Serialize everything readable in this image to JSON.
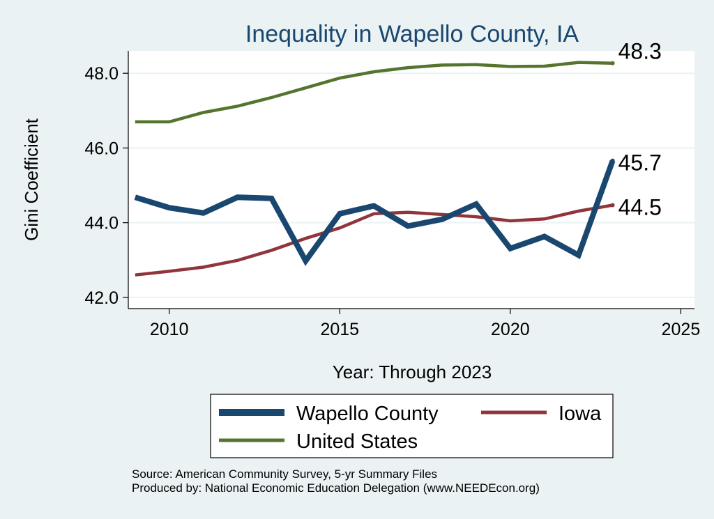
{
  "chart_data": {
    "type": "line",
    "title": "Inequality in Wapello County, IA",
    "xlabel": "Year: Through 2023",
    "ylabel": "Gini Coefficient",
    "xlim": [
      2008.8,
      2025.4
    ],
    "ylim": [
      41.7,
      48.6
    ],
    "xticks": [
      2010,
      2015,
      2020,
      2025
    ],
    "yticks": [
      42.0,
      44.0,
      46.0,
      48.0
    ],
    "x": [
      2009,
      2010,
      2011,
      2012,
      2013,
      2014,
      2015,
      2016,
      2017,
      2018,
      2019,
      2020,
      2021,
      2022,
      2023
    ],
    "series": [
      {
        "name": "Wapello County",
        "color": "#1a476f",
        "width": "thick",
        "values": [
          44.68,
          44.4,
          44.26,
          44.68,
          44.65,
          42.98,
          44.24,
          44.45,
          43.91,
          44.09,
          44.5,
          43.31,
          43.63,
          43.13,
          45.66
        ],
        "end_label": "45.7"
      },
      {
        "name": "Iowa",
        "color": "#90353b",
        "width": "medium",
        "values": [
          42.6,
          42.7,
          42.81,
          42.99,
          43.26,
          43.58,
          43.86,
          44.24,
          44.28,
          44.22,
          44.16,
          44.05,
          44.1,
          44.31,
          44.47
        ],
        "end_label": "44.5"
      },
      {
        "name": "United States",
        "color": "#55752f",
        "width": "medium",
        "values": [
          46.7,
          46.7,
          46.95,
          47.12,
          47.35,
          47.61,
          47.87,
          48.04,
          48.15,
          48.22,
          48.23,
          48.18,
          48.19,
          48.29,
          48.27
        ],
        "end_label": "48.3"
      }
    ],
    "legend_position": "bottom"
  },
  "source_line": "Source: American Community Survey, 5-yr Summary Files",
  "produced_line": "Produced by: National Economic Education Delegation (www.NEEDEcon.org)"
}
